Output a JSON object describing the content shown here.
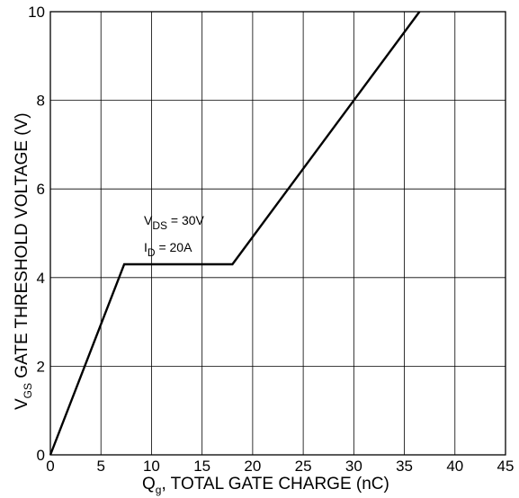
{
  "chart_data": {
    "type": "line",
    "title": "",
    "xlabel": {
      "main": "Q",
      "sub": "g",
      "rest": ", TOTAL GATE CHARGE (nC)"
    },
    "ylabel": {
      "main": "V",
      "sub": "GS",
      "rest": " GATE THRESHOLD VOLTAGE (V)"
    },
    "xlim": [
      0,
      45
    ],
    "ylim": [
      0,
      10
    ],
    "xticks": [
      0,
      5,
      10,
      15,
      20,
      25,
      30,
      35,
      40,
      45
    ],
    "yticks": [
      0,
      2,
      4,
      6,
      8,
      10
    ],
    "grid": true,
    "series": [
      {
        "x": [
          0,
          7.3,
          18,
          36.5
        ],
        "y": [
          0,
          4.3,
          4.3,
          10
        ]
      }
    ],
    "annotations": [
      {
        "main": "V",
        "sub": "DS",
        "rest": " = 30V"
      },
      {
        "main": "I",
        "sub": "D",
        "rest": " = 20A"
      }
    ]
  }
}
